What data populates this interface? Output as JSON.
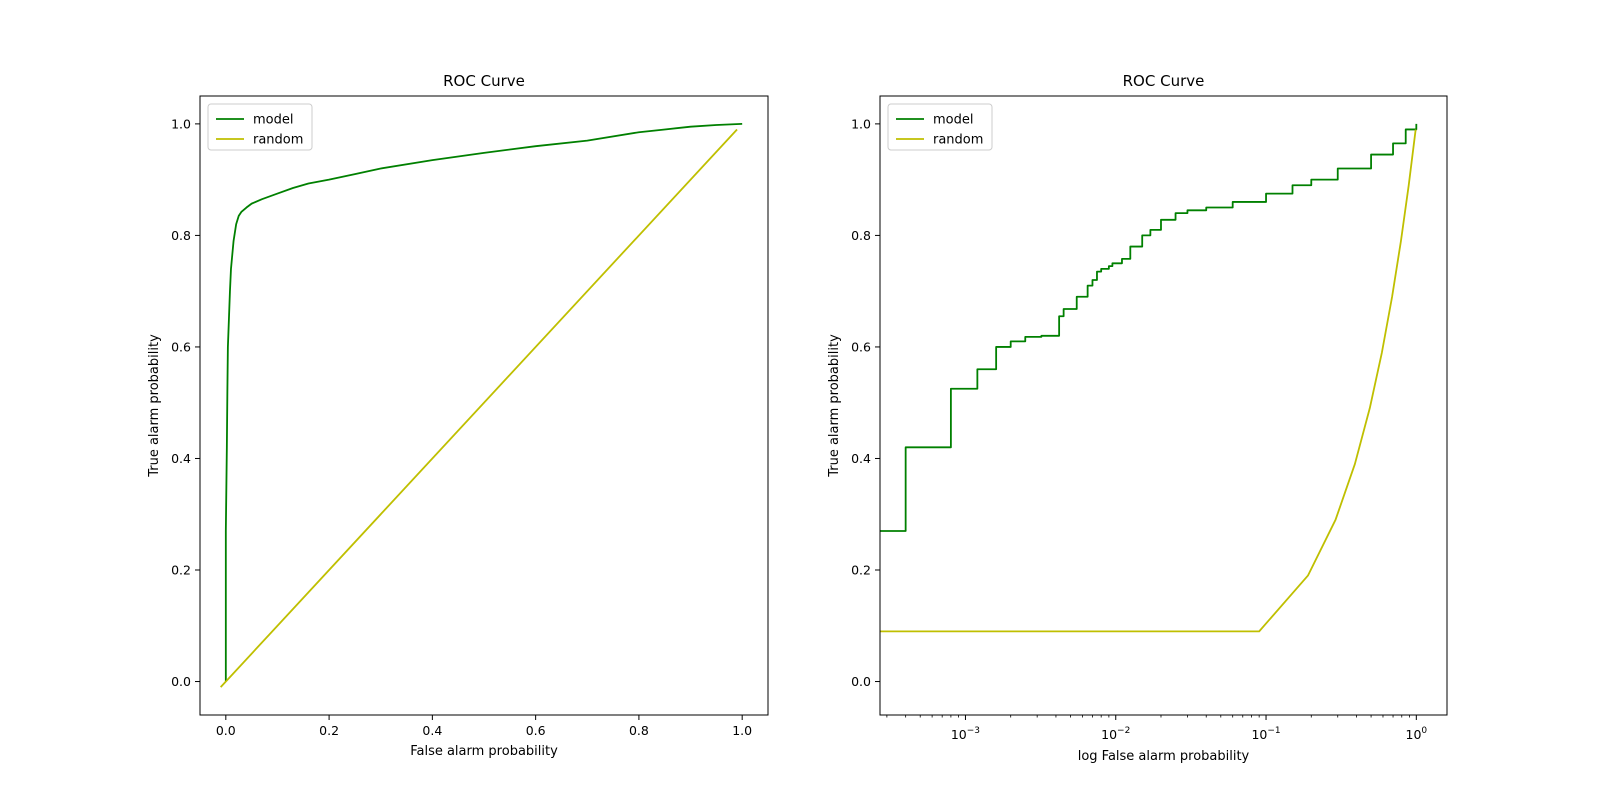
{
  "chart_data": [
    {
      "type": "line",
      "title": "ROC Curve",
      "xlabel": "False alarm probability",
      "ylabel": "True alarm probability",
      "xlim": [
        -0.05,
        1.05
      ],
      "ylim": [
        -0.06,
        1.05
      ],
      "xscale": "linear",
      "xticks": [
        0.0,
        0.2,
        0.4,
        0.6,
        0.8,
        1.0
      ],
      "xtick_labels": [
        "0.0",
        "0.2",
        "0.4",
        "0.6",
        "0.8",
        "1.0"
      ],
      "yticks": [
        0.0,
        0.2,
        0.4,
        0.6,
        0.8,
        1.0
      ],
      "ytick_labels": [
        "0.0",
        "0.2",
        "0.4",
        "0.6",
        "0.8",
        "1.0"
      ],
      "grid": false,
      "legend": "top-left",
      "series": [
        {
          "name": "model",
          "color": "#008000",
          "x": [
            0.0,
            0.0,
            0.002,
            0.003,
            0.004,
            0.006,
            0.008,
            0.01,
            0.012,
            0.015,
            0.02,
            0.025,
            0.03,
            0.04,
            0.05,
            0.07,
            0.1,
            0.13,
            0.16,
            0.2,
            0.25,
            0.3,
            0.4,
            0.5,
            0.6,
            0.7,
            0.8,
            0.85,
            0.9,
            0.95,
            1.0
          ],
          "y": [
            0.0,
            0.27,
            0.42,
            0.52,
            0.6,
            0.65,
            0.7,
            0.74,
            0.76,
            0.79,
            0.82,
            0.835,
            0.842,
            0.85,
            0.857,
            0.865,
            0.875,
            0.885,
            0.893,
            0.9,
            0.91,
            0.92,
            0.935,
            0.948,
            0.96,
            0.97,
            0.985,
            0.99,
            0.995,
            0.998,
            1.0
          ]
        },
        {
          "name": "random",
          "color": "#bfbf00",
          "x": [
            -0.01,
            0.99
          ],
          "y": [
            -0.01,
            0.99
          ]
        }
      ]
    },
    {
      "type": "line",
      "title": "ROC Curve",
      "xlabel": "log False alarm probability",
      "ylabel": "True alarm probability",
      "xlim": [
        0.00027,
        1.6
      ],
      "ylim": [
        -0.06,
        1.05
      ],
      "xscale": "log",
      "xticks": [
        0.001,
        0.01,
        0.1,
        1
      ],
      "xtick_labels": [
        "10",
        "10",
        "10",
        "10"
      ],
      "xtick_exponents": [
        "−3",
        "−2",
        "−1",
        "0"
      ],
      "yticks": [
        0.0,
        0.2,
        0.4,
        0.6,
        0.8,
        1.0
      ],
      "ytick_labels": [
        "0.0",
        "0.2",
        "0.4",
        "0.6",
        "0.8",
        "1.0"
      ],
      "grid": false,
      "legend": "top-left",
      "series": [
        {
          "name": "model",
          "color": "#008000",
          "step": true,
          "x": [
            0.00027,
            0.0004,
            0.0008,
            0.0012,
            0.0016,
            0.002,
            0.0025,
            0.0032,
            0.0042,
            0.0045,
            0.0055,
            0.0065,
            0.007,
            0.0075,
            0.008,
            0.009,
            0.0095,
            0.011,
            0.0125,
            0.015,
            0.017,
            0.02,
            0.025,
            0.03,
            0.04,
            0.06,
            0.1,
            0.15,
            0.2,
            0.3,
            0.5,
            0.7,
            0.85,
            1.0
          ],
          "y": [
            0.27,
            0.42,
            0.525,
            0.56,
            0.6,
            0.61,
            0.618,
            0.62,
            0.655,
            0.668,
            0.69,
            0.71,
            0.72,
            0.735,
            0.74,
            0.745,
            0.75,
            0.758,
            0.78,
            0.8,
            0.81,
            0.828,
            0.84,
            0.845,
            0.85,
            0.86,
            0.875,
            0.89,
            0.9,
            0.92,
            0.945,
            0.965,
            0.99,
            1.0
          ]
        },
        {
          "name": "random",
          "color": "#bfbf00",
          "x": [
            0.00027,
            0.09,
            0.19,
            0.29,
            0.39,
            0.49,
            0.59,
            0.69,
            0.79,
            0.89,
            0.99
          ],
          "y": [
            0.09,
            0.09,
            0.19,
            0.29,
            0.39,
            0.49,
            0.59,
            0.69,
            0.79,
            0.89,
            0.99
          ]
        }
      ]
    }
  ]
}
